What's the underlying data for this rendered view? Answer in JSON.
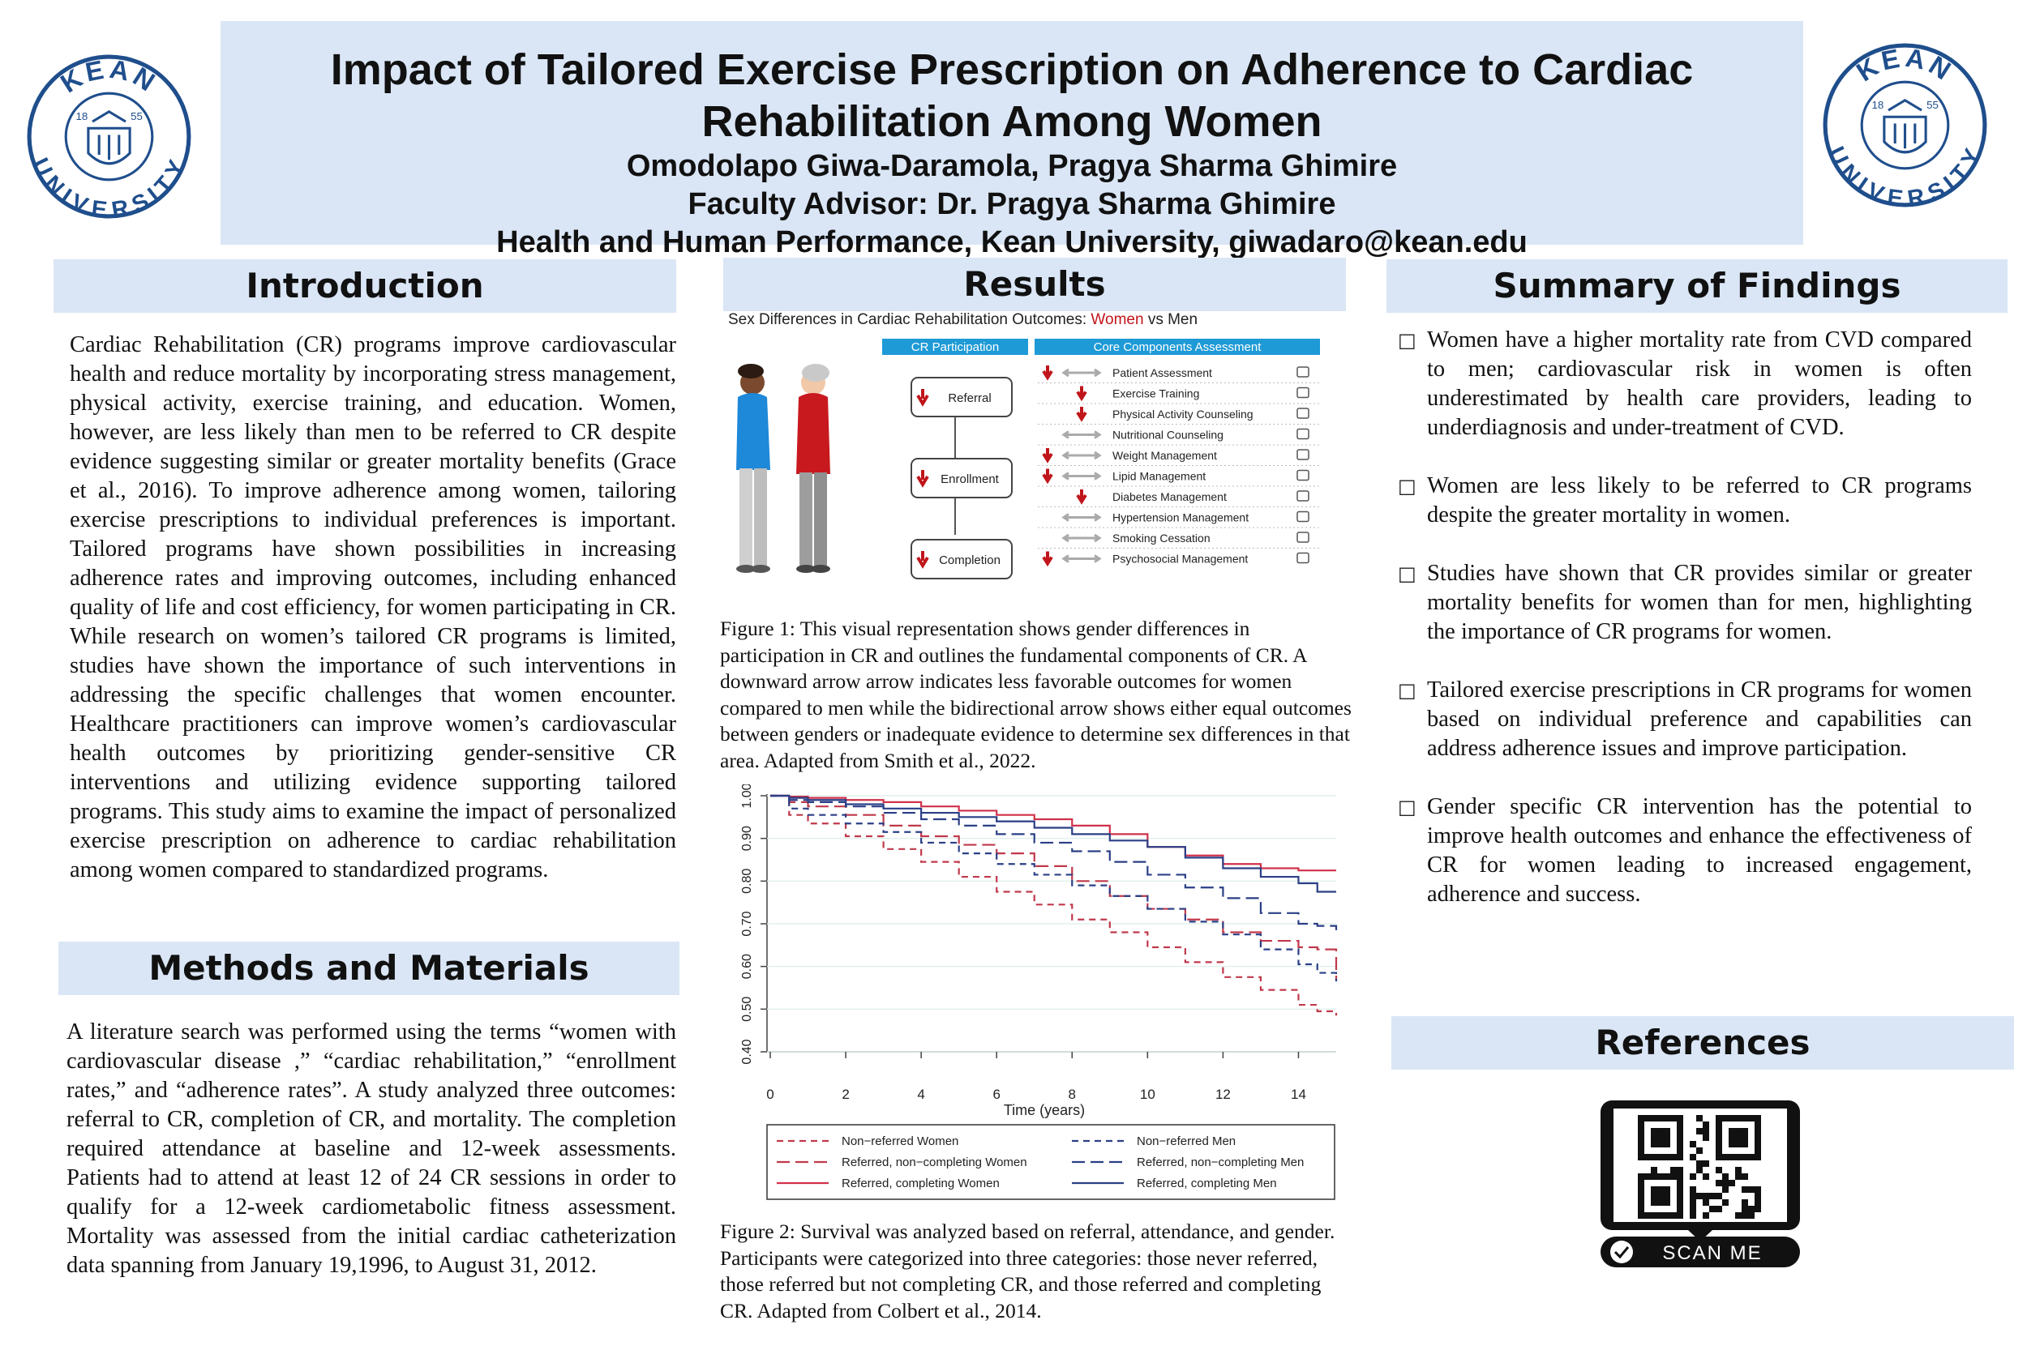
{
  "header": {
    "title_line1": "Impact of Tailored Exercise Prescription on Adherence to Cardiac",
    "title_line2": "Rehabilitation Among Women",
    "authors": "Omodolapo Giwa-Daramola, Pragya Sharma Ghimire",
    "advisor": "Faculty Advisor: Dr. Pragya Sharma Ghimire",
    "affiliation": "Health and Human Performance, Kean University, giwadaro@kean.edu"
  },
  "logo": {
    "top_text": "KEAN",
    "bottom_text": "UNIVERSITY",
    "year_left": "18",
    "year_right": "55",
    "color": "#1f4e8c"
  },
  "introduction": {
    "heading": "Introduction",
    "text": "Cardiac Rehabilitation (CR) programs improve cardiovascular health and reduce mortality by incorporating stress management, physical activity, exercise training, and education. Women, however, are less likely than men to be referred to CR despite evidence suggesting similar or greater mortality benefits (Grace et al., 2016). To improve adherence among women, tailoring exercise prescriptions to individual preferences is important. Tailored programs have shown possibilities in increasing adherence rates and improving outcomes, including enhanced quality of life and cost efficiency, for women participating in CR. While research on women’s tailored CR programs is limited, studies have shown the importance of such interventions in addressing the specific challenges that women encounter. Healthcare practitioners can improve women’s cardiovascular health outcomes by prioritizing gender-sensitive CR interventions and utilizing evidence supporting tailored programs. This study aims to examine the impact of personalized exercise prescription on adherence to cardiac rehabilitation among women compared to standardized programs."
  },
  "methods": {
    "heading": "Methods and Materials",
    "text": "A literature search was performed using the terms “women with cardiovascular disease ,” “cardiac rehabilitation,” “enrollment rates,” and “adherence rates”. A study analyzed three outcomes: referral to CR, completion of CR, and mortality. The completion required attendance at baseline and 12-week assessments. Patients had to attend at least 12 of 24 CR sessions in order to qualify for a 12-week cardiometabolic fitness assessment. Mortality was assessed from the initial cardiac catheterization data spanning from January 19,1996, to August 31, 2012."
  },
  "results": {
    "heading": "Results",
    "figure1": {
      "title_prefix": "Sex Differences  in Cardiac Rehabilitation Outcomes: ",
      "title_women": "Women",
      "title_suffix": " vs Men",
      "participation_header": "CR Participation",
      "components_header": "Core Components Assessment",
      "participation_steps": [
        "Referral",
        "Enrollment",
        "Completion"
      ],
      "components": [
        {
          "label": "Patient Assessment",
          "arrow": "down-left"
        },
        {
          "label": "Exercise Training",
          "arrow": "down"
        },
        {
          "label": "Physical Activity Counseling",
          "arrow": "down"
        },
        {
          "label": "Nutritional Counseling",
          "arrow": "both"
        },
        {
          "label": "Weight Management",
          "arrow": "down-left"
        },
        {
          "label": "Lipid Management",
          "arrow": "down-left"
        },
        {
          "label": "Diabetes Management",
          "arrow": "down"
        },
        {
          "label": "Hypertension Management",
          "arrow": "both"
        },
        {
          "label": "Smoking Cessation",
          "arrow": "both"
        },
        {
          "label": "Psychosocial Management",
          "arrow": "down-left"
        }
      ],
      "colors": {
        "women": "#c0151b",
        "header_bg": "#1e9ad6",
        "down_arrow": "#c0151b",
        "both_arrow": "#aaaaaa"
      },
      "caption": "Figure 1: This visual representation shows gender differences in participation in CR and outlines the fundamental components of CR. A downward arrow arrow indicates less favorable outcomes for women compared to men while the bidirectional arrow shows either equal outcomes between genders or inadequate evidence to determine sex differences in that area. Adapted from Smith et al., 2022."
    },
    "figure2_caption": "Figure 2: Survival was analyzed based on referral, attendance, and gender. Participants were categorized into three categories: those never referred, those referred but not completing CR, and those referred and completing CR. Adapted from Colbert et al., 2014."
  },
  "chart_data": {
    "type": "line",
    "title": "",
    "xlabel": "Time (years)",
    "ylabel": "",
    "xlim": [
      0,
      15
    ],
    "ylim": [
      0.4,
      1.0
    ],
    "x_ticks": [
      "0",
      "2",
      "4",
      "6",
      "8",
      "10",
      "12",
      "14"
    ],
    "y_ticks": [
      "0.40",
      "0.50",
      "0.60",
      "0.70",
      "0.80",
      "0.90",
      "1.00"
    ],
    "x": [
      0,
      0.5,
      1,
      2,
      3,
      4,
      5,
      6,
      7,
      8,
      9,
      10,
      11,
      12,
      13,
      14,
      14.5,
      15
    ],
    "series": [
      {
        "name": "Non−referred Women",
        "color": "#c0394b",
        "dash": "short",
        "values": [
          1.0,
          0.955,
          0.935,
          0.905,
          0.875,
          0.845,
          0.81,
          0.775,
          0.745,
          0.71,
          0.68,
          0.645,
          0.61,
          0.575,
          0.545,
          0.51,
          0.495,
          0.485
        ]
      },
      {
        "name": "Referred, non−completing Women",
        "color": "#c0394b",
        "dash": "long",
        "values": [
          1.0,
          0.985,
          0.975,
          0.955,
          0.93,
          0.905,
          0.885,
          0.865,
          0.835,
          0.8,
          0.765,
          0.735,
          0.71,
          0.68,
          0.66,
          0.645,
          0.64,
          0.57
        ]
      },
      {
        "name": "Referred, completing Women",
        "color": "#d0314a",
        "dash": "solid",
        "values": [
          1.0,
          0.998,
          0.995,
          0.99,
          0.985,
          0.975,
          0.965,
          0.955,
          0.945,
          0.93,
          0.91,
          0.88,
          0.86,
          0.84,
          0.83,
          0.825,
          0.825,
          0.825
        ]
      },
      {
        "name": "Non−referred Men",
        "color": "#2a3f86",
        "dash": "short",
        "values": [
          1.0,
          0.97,
          0.955,
          0.935,
          0.915,
          0.89,
          0.865,
          0.84,
          0.815,
          0.79,
          0.765,
          0.735,
          0.705,
          0.675,
          0.64,
          0.605,
          0.585,
          0.565
        ]
      },
      {
        "name": "Referred, non−completing Men",
        "color": "#2a3f86",
        "dash": "long",
        "values": [
          1.0,
          0.99,
          0.985,
          0.975,
          0.96,
          0.945,
          0.93,
          0.91,
          0.89,
          0.87,
          0.845,
          0.815,
          0.785,
          0.76,
          0.725,
          0.7,
          0.695,
          0.685
        ]
      },
      {
        "name": "Referred, completing Men",
        "color": "#2a3f86",
        "dash": "solid",
        "values": [
          1.0,
          0.995,
          0.99,
          0.98,
          0.97,
          0.96,
          0.95,
          0.94,
          0.925,
          0.91,
          0.895,
          0.88,
          0.855,
          0.83,
          0.81,
          0.795,
          0.775,
          0.775
        ]
      }
    ],
    "legend": "bottom"
  },
  "summary": {
    "heading": "Summary of Findings",
    "bullet_glyph": "□",
    "items": [
      "Women have a higher mortality rate from CVD compared to men; cardiovascular risk in women is often underestimated by health care providers, leading to underdiagnosis and under-treatment of CVD.",
      "Women are less likely to be referred to CR programs despite the greater mortality in women.",
      "Studies have shown that CR provides similar or greater mortality benefits for women than for men, highlighting the importance of CR programs for women.",
      "Tailored exercise prescriptions in CR programs for women based on individual preference and capabilities can address adherence issues and improve participation.",
      "Gender specific CR intervention has the potential to improve health outcomes and enhance the effectiveness of CR for women leading to increased engagement, adherence and success."
    ]
  },
  "references": {
    "heading": "References",
    "qr_label": "SCAN ME"
  }
}
